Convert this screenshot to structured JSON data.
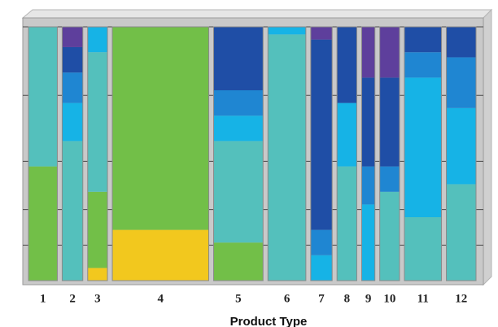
{
  "chart_data": {
    "type": "mekko",
    "x_label": "Product Type",
    "categories": [
      "1",
      "2",
      "3",
      "4",
      "5",
      "6",
      "7",
      "8",
      "9",
      "10",
      "11",
      "12"
    ],
    "widths": [
      35,
      25,
      24,
      117,
      60,
      46,
      26,
      24,
      16,
      24,
      45,
      36
    ],
    "ylim": [
      0,
      100
    ],
    "yticks": [
      14,
      28,
      47,
      73,
      100
    ],
    "grid": true,
    "series": [
      {
        "color": "#f2c81e",
        "values": [
          0,
          0,
          5,
          20,
          0,
          0,
          0,
          0,
          0,
          0,
          0,
          0
        ]
      },
      {
        "color": "#72bf48",
        "values": [
          45,
          0,
          30,
          80,
          15,
          0,
          0,
          0,
          0,
          0,
          0,
          0
        ]
      },
      {
        "color": "#54c0bc",
        "values": [
          55,
          55,
          55,
          0,
          40,
          97,
          0,
          45,
          0,
          35,
          25,
          38
        ]
      },
      {
        "color": "#16b3e6",
        "values": [
          0,
          15,
          10,
          0,
          10,
          3,
          10,
          25,
          30,
          0,
          55,
          30
        ]
      },
      {
        "color": "#1f86d2",
        "values": [
          0,
          12,
          0,
          0,
          10,
          0,
          10,
          0,
          15,
          10,
          10,
          20
        ]
      },
      {
        "color": "#1f4ea6",
        "values": [
          0,
          10,
          0,
          0,
          25,
          0,
          75,
          30,
          35,
          35,
          10,
          12
        ]
      },
      {
        "color": "#5e3f9c",
        "values": [
          0,
          8,
          0,
          0,
          0,
          0,
          5,
          0,
          20,
          20,
          0,
          0
        ]
      }
    ]
  }
}
